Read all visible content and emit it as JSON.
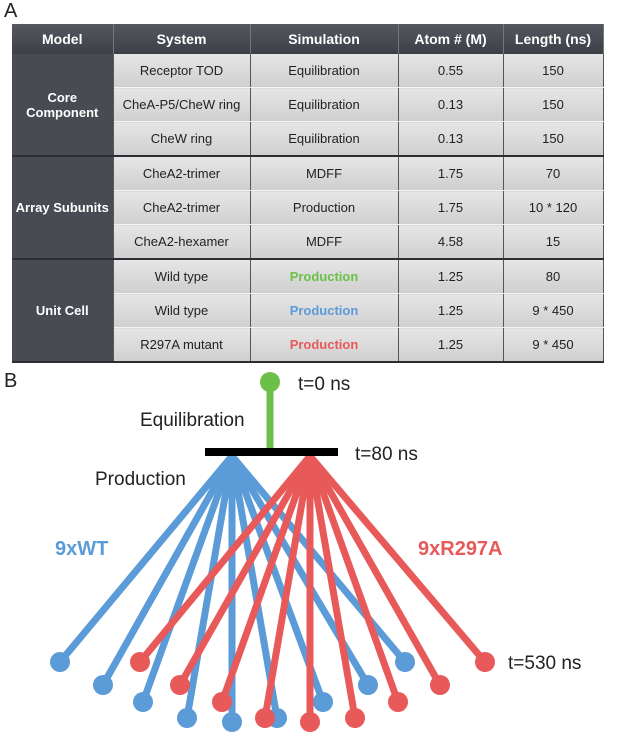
{
  "panel_a": {
    "label": "A",
    "table": {
      "headers": [
        "Model",
        "System",
        "Simulation",
        "Atom # (M)",
        "Length (ns)"
      ],
      "groups": [
        {
          "label": "Core Component",
          "rows": [
            [
              "Receptor TOD",
              "Equilibration",
              "0.55",
              "150"
            ],
            [
              "CheA-P5/CheW ring",
              "Equilibration",
              "0.13",
              "150"
            ],
            [
              "CheW ring",
              "Equilibration",
              "0.13",
              "150"
            ]
          ]
        },
        {
          "label": "Array Subunits",
          "rows": [
            [
              "CheA2-trimer",
              "MDFF",
              "1.75",
              "70"
            ],
            [
              "CheA2-trimer",
              "Production",
              "1.75",
              "10 * 120"
            ],
            [
              "CheA2-hexamer",
              "MDFF",
              "4.58",
              "15"
            ]
          ]
        },
        {
          "label": "Unit Cell",
          "rows": [
            [
              "Wild type",
              "Production",
              "1.25",
              "80"
            ],
            [
              "Wild type",
              "Production",
              "1.25",
              "9 * 450"
            ],
            [
              "R297A mutant",
              "Production",
              "1.25",
              "9 * 450"
            ]
          ]
        }
      ]
    }
  },
  "panel_b": {
    "label": "B",
    "start": "t=0 ns",
    "equilibration": "Equilibration",
    "branch": "t=80 ns",
    "production": "Production",
    "wt": "9xWT",
    "mutant": "9xR297A",
    "end": "t=530 ns"
  }
}
